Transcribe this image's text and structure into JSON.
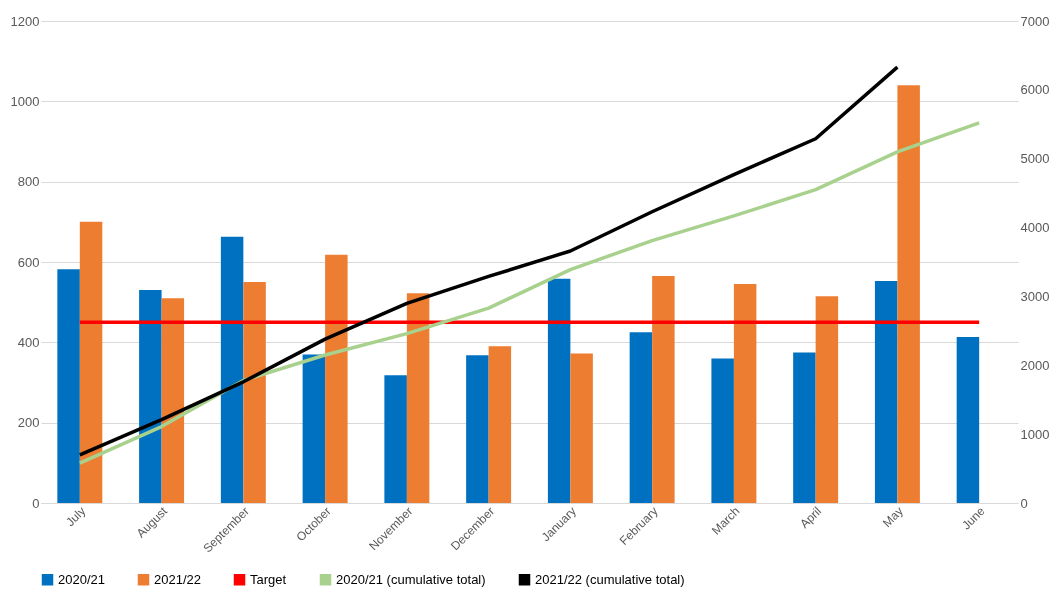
{
  "chart_data": {
    "type": "bar",
    "categories": [
      "July",
      "August",
      "September",
      "October",
      "November",
      "December",
      "January",
      "February",
      "March",
      "April",
      "May",
      "June"
    ],
    "series": [
      {
        "name": "2020/21",
        "color": "#0070c0",
        "values": [
          582,
          530,
          663,
          370,
          318,
          368,
          558,
          425,
          360,
          375,
          553,
          413
        ]
      },
      {
        "name": "2021/22",
        "color": "#ed7d31",
        "values": [
          700,
          510,
          550,
          618,
          522,
          390,
          372,
          565,
          545,
          515,
          1040,
          null
        ]
      },
      {
        "name": "Target",
        "type": "line",
        "color": "#ff0000",
        "values": [
          450,
          450,
          450,
          450,
          450,
          450,
          450,
          450,
          450,
          450,
          450,
          450
        ]
      },
      {
        "name": "2020/21 (cumulative total)",
        "type": "line",
        "axis": "y2",
        "color": "#a9d18e",
        "values": [
          580,
          1110,
          1780,
          2150,
          2460,
          2830,
          3390,
          3810,
          4170,
          4550,
          5100,
          5520
        ]
      },
      {
        "name": "2021/22 (cumulative total)",
        "type": "line",
        "axis": "y2",
        "color": "#000000",
        "values": [
          700,
          1210,
          1760,
          2380,
          2900,
          3290,
          3660,
          4230,
          4770,
          5290,
          6330,
          null
        ]
      }
    ],
    "ylim": [
      0,
      1200
    ],
    "yticks": [
      0,
      200,
      400,
      600,
      800,
      1000,
      1200
    ],
    "y2lim": [
      0,
      7000
    ],
    "y2ticks": [
      0,
      1000,
      2000,
      3000,
      4000,
      5000,
      6000,
      7000
    ],
    "grid": "y",
    "legend": "bottom",
    "marker": "none",
    "line_style": "solid"
  }
}
